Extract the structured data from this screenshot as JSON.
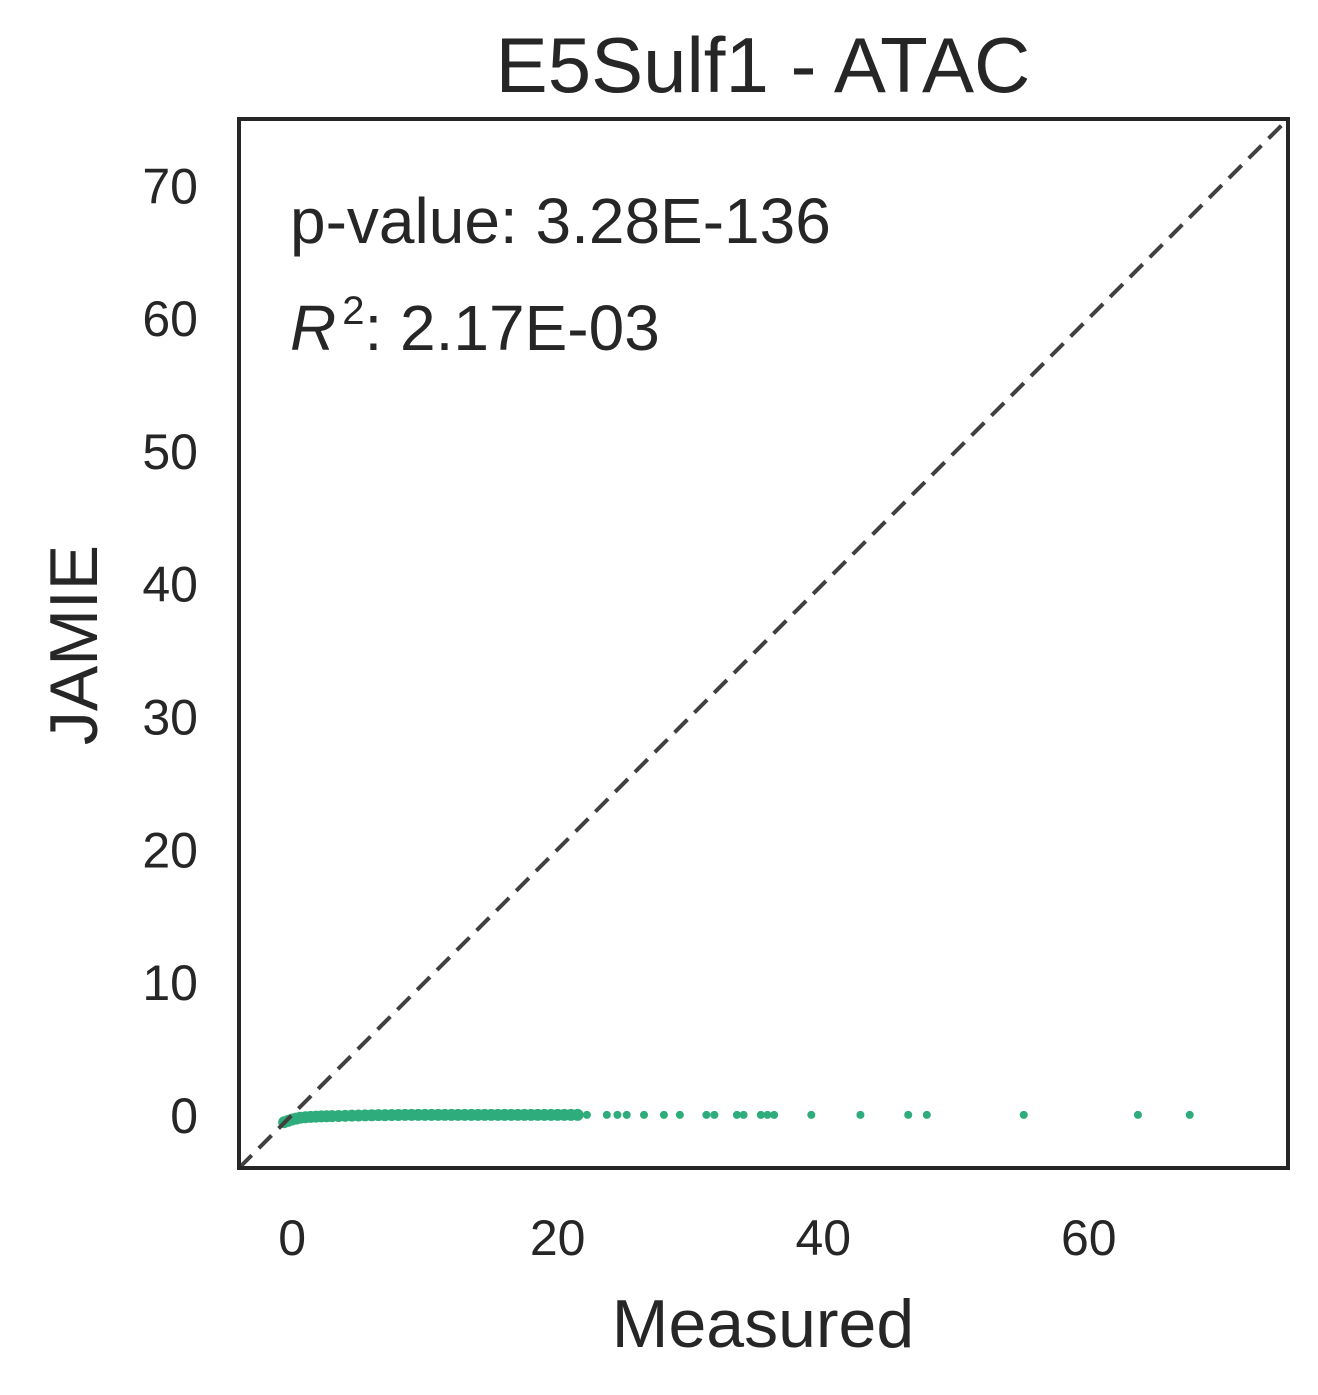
{
  "chart_data": {
    "type": "scatter",
    "title": "E5Sulf1 - ATAC",
    "xlabel": "Measured",
    "ylabel": "JAMIE",
    "xlim": [
      -4,
      75
    ],
    "ylim": [
      -4,
      75
    ],
    "x_ticks": [
      "0",
      "20",
      "40",
      "60"
    ],
    "y_ticks": [
      "0",
      "10",
      "20",
      "30",
      "40",
      "50",
      "60",
      "70"
    ],
    "grid": false,
    "identity_line": true,
    "annotations": {
      "pvalue": "p-value: 3.28E-136",
      "r2_symbol": "R",
      "r2_exponent": "2",
      "r2_value": ": 2.17E-03"
    },
    "colors": {
      "points": "#2eac7c",
      "identity_line": "#404040",
      "axes": "#262626"
    },
    "series": [
      {
        "x": [
          -0.6,
          -0.3,
          0,
          0.3,
          0.6,
          1,
          1.4,
          1.8,
          2.2,
          2.6,
          3,
          3.5,
          4,
          4.5,
          5,
          5.5,
          6,
          6.5,
          7,
          7.5,
          8,
          8.5,
          9,
          9.5,
          10,
          10.5,
          11,
          11.5,
          12,
          12.5,
          13,
          13.5,
          14,
          14.5,
          15,
          15.5,
          16,
          16.5,
          17,
          17.5,
          18,
          18.5,
          19,
          19.5,
          20,
          20.5,
          21,
          21.5,
          22.2,
          23.7,
          24.5,
          25.2,
          26.5,
          28,
          29.2,
          31.2,
          31.8,
          33.5,
          34,
          35.3,
          35.8,
          36.3,
          39.1,
          42.8,
          46.4,
          47.8,
          55.1,
          63.7,
          67.6
        ],
        "y": [
          -0.55,
          -0.45,
          -0.35,
          -0.28,
          -0.22,
          -0.18,
          -0.15,
          -0.13,
          -0.11,
          -0.1,
          -0.09,
          -0.08,
          -0.07,
          -0.06,
          -0.05,
          -0.04,
          -0.03,
          -0.02,
          -0.02,
          -0.01,
          -0.01,
          0,
          0,
          0,
          0,
          0,
          0,
          0,
          0,
          0,
          0,
          0,
          0,
          0,
          0,
          0,
          0,
          0,
          0,
          0,
          0,
          0,
          0,
          0,
          0,
          0,
          0,
          0,
          0,
          0,
          0,
          0,
          0,
          0,
          0,
          0,
          0,
          0,
          0,
          0,
          0,
          0,
          0,
          0,
          0,
          0,
          0,
          0,
          0
        ]
      }
    ]
  }
}
